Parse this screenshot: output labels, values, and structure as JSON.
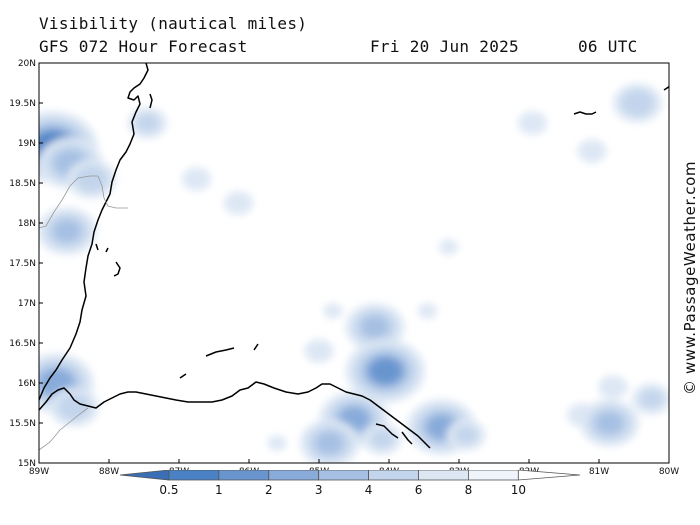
{
  "header": {
    "title": "Visibility (nautical miles)",
    "forecast": "GFS 072 Hour Forecast",
    "date": "Fri 20 Jun 2025",
    "time": "06 UTC"
  },
  "credit": "© www.PassageWeather.com",
  "map": {
    "lon_ticks": [
      "89W",
      "88W",
      "87W",
      "86W",
      "85W",
      "84W",
      "83W",
      "82W",
      "81W",
      "80W"
    ],
    "lat_ticks": [
      "20N",
      "19.5N",
      "19N",
      "18.5N",
      "18N",
      "17.5N",
      "17N",
      "16.5N",
      "16N",
      "15.5N",
      "15N"
    ],
    "lon_range": [
      -89,
      -80
    ],
    "lat_range": [
      15,
      20
    ],
    "coastline_color": "#000000",
    "fog_patches": [
      {
        "lon": -88.8,
        "lat": 18.95,
        "vis": 1.0
      },
      {
        "lon": -88.55,
        "lat": 18.75,
        "vis": 3.5
      },
      {
        "lon": -88.25,
        "lat": 18.55,
        "vis": 5.0
      },
      {
        "lon": -88.6,
        "lat": 17.9,
        "vis": 4.0
      },
      {
        "lon": -88.75,
        "lat": 16.0,
        "vis": 2.5
      },
      {
        "lon": -88.5,
        "lat": 15.7,
        "vis": 5.0
      },
      {
        "lon": -87.45,
        "lat": 19.25,
        "vis": 6.0
      },
      {
        "lon": -86.75,
        "lat": 18.55,
        "vis": 7.0
      },
      {
        "lon": -86.15,
        "lat": 18.25,
        "vis": 7.0
      },
      {
        "lon": -84.8,
        "lat": 16.9,
        "vis": 8.0
      },
      {
        "lon": -84.2,
        "lat": 16.7,
        "vis": 4.0
      },
      {
        "lon": -84.05,
        "lat": 16.15,
        "vis": 2.0
      },
      {
        "lon": -83.45,
        "lat": 16.9,
        "vis": 8.0
      },
      {
        "lon": -85.0,
        "lat": 16.4,
        "vis": 7.0
      },
      {
        "lon": -84.5,
        "lat": 15.55,
        "vis": 3.0
      },
      {
        "lon": -84.85,
        "lat": 15.25,
        "vis": 4.0
      },
      {
        "lon": -84.1,
        "lat": 15.3,
        "vis": 6.0
      },
      {
        "lon": -83.25,
        "lat": 15.45,
        "vis": 3.0
      },
      {
        "lon": -82.9,
        "lat": 15.35,
        "vis": 6.0
      },
      {
        "lon": -85.6,
        "lat": 15.25,
        "vis": 8.0
      },
      {
        "lon": -83.15,
        "lat": 17.7,
        "vis": 8.0
      },
      {
        "lon": -80.8,
        "lat": 15.95,
        "vis": 7.0
      },
      {
        "lon": -81.25,
        "lat": 15.6,
        "vis": 7.0
      },
      {
        "lon": -80.85,
        "lat": 15.5,
        "vis": 4.0
      },
      {
        "lon": -80.25,
        "lat": 15.8,
        "vis": 6.0
      },
      {
        "lon": -80.45,
        "lat": 19.5,
        "vis": 5.0
      },
      {
        "lon": -81.95,
        "lat": 19.25,
        "vis": 7.0
      },
      {
        "lon": -81.1,
        "lat": 18.9,
        "vis": 7.0
      }
    ]
  },
  "colorbar": {
    "labels": [
      "0.5",
      "1",
      "2",
      "3",
      "4",
      "6",
      "8",
      "10"
    ],
    "colors": [
      "#3a6fb5",
      "#4a80c4",
      "#6995cf",
      "#88abda",
      "#a6c0e3",
      "#c3d5ec",
      "#dde7f4",
      "#f0f5fb",
      "#ffffff"
    ]
  }
}
